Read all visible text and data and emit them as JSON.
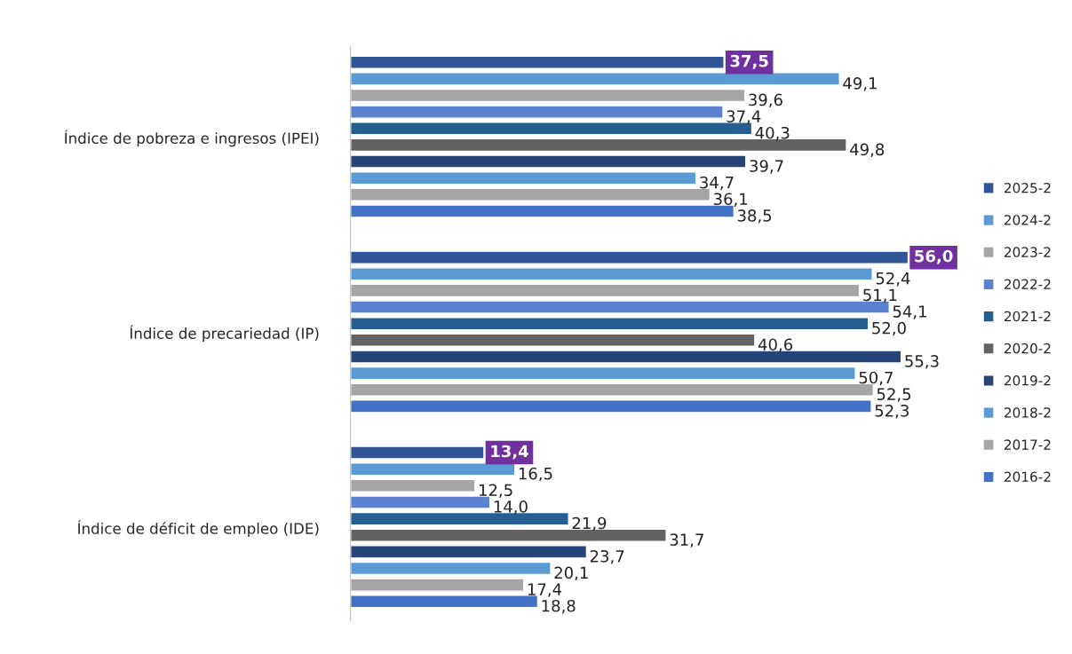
{
  "chart_data": {
    "type": "bar",
    "orientation": "horizontal",
    "categories": [
      "Índice de pobreza e ingresos (IPEI)",
      "Índice de precariedad (IP)",
      "Índice de déficit de empleo (IDE)"
    ],
    "legend": "right",
    "series": [
      {
        "name": "2025-2",
        "color": "#2f5597",
        "values": [
          37.5,
          56.0,
          13.4
        ],
        "value_labels": [
          "37,5",
          "56,0",
          "13,4"
        ]
      },
      {
        "name": "2024-2",
        "color": "#5b9bd5",
        "values": [
          49.1,
          52.4,
          16.5
        ],
        "value_labels": [
          "49,1",
          "52,4",
          "16,5"
        ]
      },
      {
        "name": "2023-2",
        "color": "#a5a5a5",
        "values": [
          39.6,
          51.1,
          12.5
        ],
        "value_labels": [
          "39,6",
          "51,1",
          "12,5"
        ]
      },
      {
        "name": "2022-2",
        "color": "#5b82d0",
        "values": [
          37.4,
          54.1,
          14.0
        ],
        "value_labels": [
          "37,4",
          "54,1",
          "14,0"
        ]
      },
      {
        "name": "2021-2",
        "color": "#255e91",
        "values": [
          40.3,
          52.0,
          21.9
        ],
        "value_labels": [
          "40,3",
          "52,0",
          "21,9"
        ]
      },
      {
        "name": "2020-2",
        "color": "#636363",
        "values": [
          49.8,
          40.6,
          31.7
        ],
        "value_labels": [
          "49,8",
          "40,6",
          "31,7"
        ]
      },
      {
        "name": "2019-2",
        "color": "#264478",
        "values": [
          39.7,
          55.3,
          23.7
        ],
        "value_labels": [
          "39,7",
          "55,3",
          "23,7"
        ]
      },
      {
        "name": "2018-2",
        "color": "#5b9bd5",
        "values": [
          34.7,
          50.7,
          20.1
        ],
        "value_labels": [
          "34,7",
          "50,7",
          "20,1"
        ]
      },
      {
        "name": "2017-2",
        "color": "#a5a5a5",
        "values": [
          36.1,
          52.5,
          17.4
        ],
        "value_labels": [
          "36,1",
          "52,5",
          "17,4"
        ]
      },
      {
        "name": "2016-2",
        "color": "#4472c4",
        "values": [
          38.5,
          52.3,
          18.8
        ],
        "value_labels": [
          "38,5",
          "52,3",
          "18,8"
        ]
      }
    ]
  }
}
